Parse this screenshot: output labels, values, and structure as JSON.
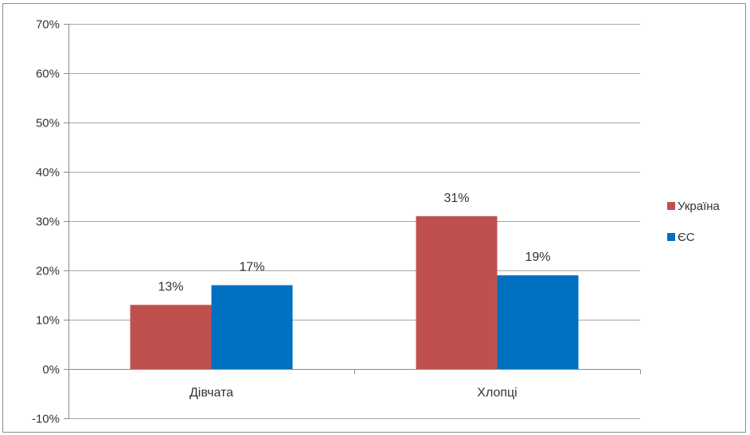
{
  "chart_data": {
    "type": "bar",
    "categories": [
      "Дівчата",
      "Хлопці"
    ],
    "series": [
      {
        "name": "Україна",
        "values": [
          13,
          31
        ],
        "color": "#c0504d",
        "labels": [
          "13%",
          "31%"
        ]
      },
      {
        "name": "ЄС",
        "values": [
          17,
          19
        ],
        "color": "#0070c0",
        "labels": [
          "17%",
          "19%"
        ]
      }
    ],
    "ylim": [
      -10,
      70
    ],
    "yticks": [
      -10,
      0,
      10,
      20,
      30,
      40,
      50,
      60,
      70
    ],
    "ytick_labels": [
      "-10%",
      "0%",
      "10%",
      "20%",
      "30%",
      "40%",
      "50%",
      "60%",
      "70%"
    ],
    "grid": true,
    "legend_position": "right",
    "title": "",
    "xlabel": "",
    "ylabel": ""
  }
}
